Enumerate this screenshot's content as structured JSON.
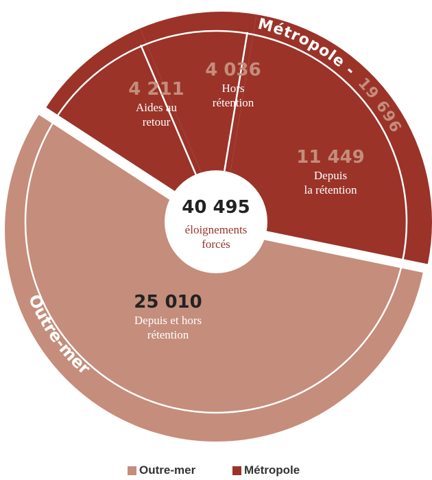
{
  "chart_data": {
    "type": "pie",
    "total": {
      "value": "40 495",
      "label_line1": "éloignements",
      "label_line2": "forcés"
    },
    "groups": [
      {
        "name": "Métropole",
        "ring_label": "Métropole -",
        "ring_value": "19 696",
        "color": "#9b3329"
      },
      {
        "name": "Outre-mer",
        "ring_label": "Outre-mer",
        "color": "#c58d7b"
      }
    ],
    "slices": [
      {
        "group": "Métropole",
        "value": 4211,
        "label_value": "4 211",
        "label_line1": "Aides au",
        "label_line2": "retour"
      },
      {
        "group": "Métropole",
        "value": 4036,
        "label_value": "4 036",
        "label_line1": "Hors",
        "label_line2": "rétention"
      },
      {
        "group": "Métropole",
        "value": 11449,
        "label_value": "11 449",
        "label_line1": "Depuis",
        "label_line2": "la rétention"
      },
      {
        "group": "Outre-mer",
        "value": 25010,
        "label_value": "25 010",
        "label_line1": "Depuis et hors",
        "label_line2": "rétention"
      }
    ],
    "legend": [
      {
        "label": "Outre-mer",
        "color": "#c58d7b"
      },
      {
        "label": "Métropole",
        "color": "#9b3329"
      }
    ],
    "colors": {
      "metro": "#9b3329",
      "metro_number": "#c58d7b",
      "outre": "#c58d7b",
      "center_label": "#9b3329"
    }
  }
}
